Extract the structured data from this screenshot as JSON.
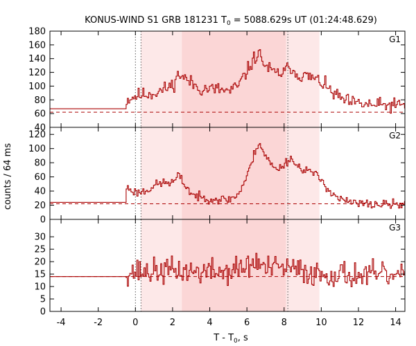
{
  "chart_data": {
    "type": "line",
    "title_main": "KONUS-WIND S1 GRB 181231 T",
    "title_sub": "0",
    "title_rest": " = 5088.629s UT (01:24:48.629)",
    "xlabel_main": "T - T",
    "xlabel_sub": "0",
    "xlabel_rest": ", s",
    "ylabel": "counts / 64 ms",
    "xlim": [
      -4.6,
      14.5
    ],
    "xticks": [
      -4,
      -2,
      0,
      2,
      4,
      6,
      8,
      10,
      12,
      14
    ],
    "shaded_regions": [
      {
        "start": 0.3,
        "end": 9.9,
        "color": "#fde8e8"
      },
      {
        "start": 2.5,
        "end": 8.1,
        "color": "#fbd6d6"
      }
    ],
    "vlines_dotted": [
      0.0,
      0.3,
      8.2
    ],
    "line_color": "#aa0000",
    "panels": [
      {
        "label": "G1",
        "ylim": [
          40,
          180
        ],
        "yticks": [
          40,
          60,
          80,
          100,
          120,
          140,
          160,
          180
        ],
        "background": 62,
        "pre_level": 67,
        "pre_end": -0.5,
        "keypoints": [
          [
            -0.5,
            80
          ],
          [
            0.0,
            86
          ],
          [
            1.0,
            90
          ],
          [
            1.5,
            95
          ],
          [
            2.0,
            102
          ],
          [
            2.3,
            118
          ],
          [
            2.6,
            112
          ],
          [
            3.0,
            104
          ],
          [
            3.5,
            96
          ],
          [
            4.0,
            96
          ],
          [
            4.5,
            95
          ],
          [
            5.0,
            92
          ],
          [
            5.5,
            100
          ],
          [
            5.9,
            118
          ],
          [
            6.3,
            138
          ],
          [
            6.6,
            148
          ],
          [
            7.0,
            128
          ],
          [
            7.5,
            118
          ],
          [
            8.0,
            120
          ],
          [
            8.3,
            130
          ],
          [
            8.6,
            118
          ],
          [
            9.0,
            115
          ],
          [
            9.5,
            112
          ],
          [
            10.0,
            105
          ],
          [
            10.5,
            92
          ],
          [
            11.0,
            82
          ],
          [
            11.5,
            76
          ],
          [
            12.0,
            74
          ],
          [
            13.0,
            72
          ],
          [
            14.5,
            72
          ]
        ],
        "noise": 8,
        "seed": 11
      },
      {
        "label": "G2",
        "ylim": [
          0,
          130
        ],
        "yticks": [
          0,
          20,
          40,
          60,
          80,
          100,
          120
        ],
        "background": 22,
        "pre_level": 24,
        "pre_end": -0.5,
        "keypoints": [
          [
            -0.5,
            45
          ],
          [
            0.0,
            38
          ],
          [
            0.5,
            40
          ],
          [
            1.0,
            48
          ],
          [
            1.5,
            52
          ],
          [
            2.0,
            52
          ],
          [
            2.3,
            62
          ],
          [
            2.6,
            50
          ],
          [
            3.0,
            36
          ],
          [
            3.5,
            30
          ],
          [
            4.0,
            30
          ],
          [
            4.5,
            28
          ],
          [
            5.0,
            28
          ],
          [
            5.5,
            35
          ],
          [
            6.0,
            62
          ],
          [
            6.4,
            95
          ],
          [
            6.6,
            110
          ],
          [
            7.0,
            88
          ],
          [
            7.5,
            70
          ],
          [
            8.0,
            78
          ],
          [
            8.3,
            88
          ],
          [
            8.7,
            74
          ],
          [
            9.0,
            72
          ],
          [
            9.5,
            66
          ],
          [
            10.0,
            55
          ],
          [
            10.5,
            38
          ],
          [
            11.0,
            28
          ],
          [
            11.5,
            24
          ],
          [
            12.0,
            22
          ],
          [
            13.0,
            21
          ],
          [
            14.5,
            21
          ]
        ],
        "noise": 5,
        "seed": 23
      },
      {
        "label": "G3",
        "ylim": [
          0,
          37
        ],
        "yticks": [
          0,
          5,
          10,
          15,
          20,
          25,
          30
        ],
        "background": 14,
        "pre_level": 14,
        "pre_end": -0.5,
        "keypoints": [
          [
            -0.5,
            16
          ],
          [
            0.0,
            16
          ],
          [
            1.0,
            16
          ],
          [
            2.0,
            16.5
          ],
          [
            3.0,
            16
          ],
          [
            4.0,
            16
          ],
          [
            5.0,
            16
          ],
          [
            6.0,
            18
          ],
          [
            6.5,
            20
          ],
          [
            7.0,
            17
          ],
          [
            8.0,
            17.5
          ],
          [
            9.0,
            16
          ],
          [
            10.0,
            15
          ],
          [
            11.0,
            15
          ],
          [
            12.0,
            14.5
          ],
          [
            13.0,
            14.5
          ],
          [
            14.5,
            14
          ]
        ],
        "noise": 4,
        "seed": 37
      }
    ]
  }
}
